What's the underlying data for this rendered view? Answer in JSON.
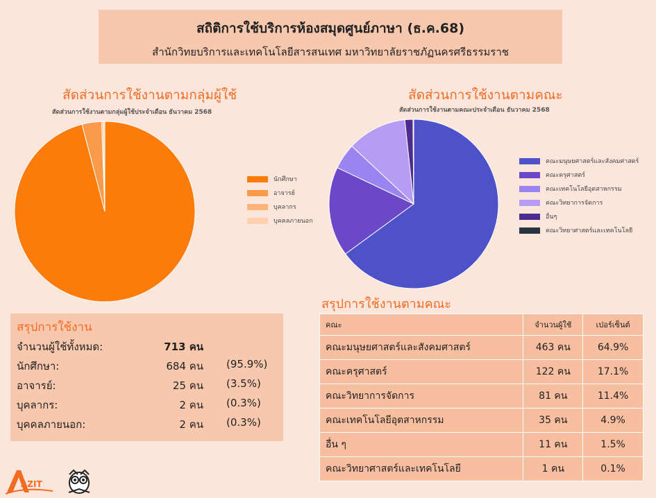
{
  "header": {
    "title": "สถิติการใช้บริการห้องสมุดศูนย์ภาษา (ธ.ค.68)",
    "subtitle": "สำนักวิทยบริการและเทคโนโลยีสารสนเทศ มหาวิทยาลัยราชภัฏนครศรีธรรมราช"
  },
  "charts": {
    "user_group": {
      "title": "สัดส่วนการใช้งานตามกลุ่มผู้ใช้",
      "subtitle": "สัดส่วนการใช้งานตามกลุ่มผู้ใช้ประจำเดือน ธันวาคม 2568"
    },
    "faculty": {
      "title": "สัดส่วนการใช้งานตามคณะ",
      "subtitle": "สัดส่วนการใช้งานตามคณะประจำเดือน ธันวาคม 2568"
    }
  },
  "chart_data": [
    {
      "type": "pie",
      "title": "สัดส่วนการใช้งานตามกลุ่มผู้ใช้",
      "subtitle": "สัดส่วนการใช้งานตามกลุ่มผู้ใช้ประจำเดือน ธันวาคม 2568",
      "legend_position": "right",
      "categories": [
        "นักศึกษา",
        "อาจารย์",
        "บุคลากร",
        "บุคคลภายนอก"
      ],
      "values": [
        684,
        25,
        2,
        2
      ],
      "colors": [
        "#fb7c0b",
        "#fb9a4a",
        "#fdb47a",
        "#fdd1ad"
      ]
    },
    {
      "type": "pie",
      "title": "สัดส่วนการใช้งานตามคณะ",
      "subtitle": "สัดส่วนการใช้งานตามคณะประจำเดือน ธันวาคม 2568",
      "legend_position": "right",
      "categories": [
        "คณะมนุษยศาสตร์และสังคมศาสตร์",
        "คณะครุศาสตร์",
        "คณะเทคโนโลยีอุตสาหกรรม",
        "คณะวิทยาการจัดการ",
        "อื่นๆ",
        "คณะวิทยาศาสตร์และเทคโนโลยี"
      ],
      "values": [
        463,
        122,
        35,
        81,
        11,
        1
      ],
      "colors": [
        "#4d52c9",
        "#6b48c8",
        "#9a84ef",
        "#b59cf5",
        "#4c2c8e",
        "#2b3340"
      ]
    }
  ],
  "summary": {
    "title": "สรุปการใช้งาน",
    "rows": [
      {
        "label": "จำนวนผู้ใช้ทั้งหมด:",
        "value": "713 คน",
        "percent": ""
      },
      {
        "label": "นักศึกษา:",
        "value": "684 คน",
        "percent": "(95.9%)"
      },
      {
        "label": "อาจารย์:",
        "value": "25 คน",
        "percent": "(3.5%)"
      },
      {
        "label": "บุคลากร:",
        "value": "2 คน",
        "percent": "(0.3%)"
      },
      {
        "label": "บุคคลภายนอก:",
        "value": "2 คน",
        "percent": "(0.3%)"
      }
    ]
  },
  "faculty_table": {
    "title": "สรุปการใช้งานตามคณะ",
    "headers": [
      "คณะ",
      "จำนวนผู้ใช้",
      "เปอร์เซ็นต์"
    ],
    "rows": [
      [
        "คณะมนุษยศาสตร์และสังคมศาสตร์",
        "463 คน",
        "64.9%"
      ],
      [
        "คณะครุศาสตร์",
        "122 คน",
        "17.1%"
      ],
      [
        "คณะวิทยาการจัดการ",
        "81 คน",
        "11.4%"
      ],
      [
        "คณะเทคโนโลยีอุตสาหกรรม",
        "35 คน",
        "4.9%"
      ],
      [
        "อื่น ๆ",
        "11 คน",
        "1.5%"
      ],
      [
        "คณะวิทยาศาสตร์และเทคโนโลยี",
        "1 คน",
        "0.1%"
      ]
    ]
  },
  "logo": {
    "text": "AZIT"
  }
}
